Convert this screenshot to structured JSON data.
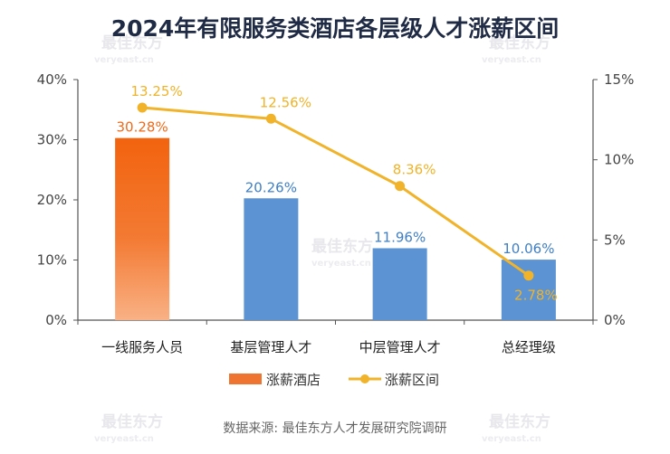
{
  "watermark": {
    "brand": "最佳东方",
    "site": "veryeast.cn"
  },
  "colors": {
    "bar_highlight_top": "#f2630e",
    "bar_highlight_bottom": "#f9b185",
    "bar_default": "#5b93d3",
    "line": "#f0b32a",
    "axis": "#555555",
    "title": "#1f2a44",
    "bar_label_highlight": "#ef6a1a",
    "bar_label_default": "#3f7fc4"
  },
  "chart_data": {
    "type": "bar+line",
    "title": "2024年有限服务类酒店各层级人才涨薪区间",
    "categories": [
      "一线服务人员",
      "基层管理人才",
      "中层管理人才",
      "总经理级"
    ],
    "left_axis": {
      "ticks": [
        "0%",
        "10%",
        "20%",
        "30%",
        "40%"
      ],
      "range": [
        0,
        40
      ]
    },
    "right_axis": {
      "ticks": [
        "0%",
        "5%",
        "10%",
        "15%"
      ],
      "range": [
        0,
        15
      ]
    },
    "series": [
      {
        "name": "涨薪酒店",
        "type": "bar",
        "axis": "left",
        "values": [
          30.28,
          20.26,
          11.96,
          10.06
        ],
        "labels": [
          "30.28%",
          "20.26%",
          "11.96%",
          "10.06%"
        ]
      },
      {
        "name": "涨薪区间",
        "type": "line",
        "axis": "right",
        "values": [
          13.25,
          12.56,
          8.36,
          2.78
        ],
        "labels": [
          "13.25%",
          "12.56%",
          "8.36%",
          "2.78%"
        ]
      }
    ],
    "legend": {
      "position": "bottom",
      "bar_label": "涨薪酒店",
      "line_label": "涨薪区间"
    },
    "source": "数据来源: 最佳东方人才发展研究院调研"
  }
}
